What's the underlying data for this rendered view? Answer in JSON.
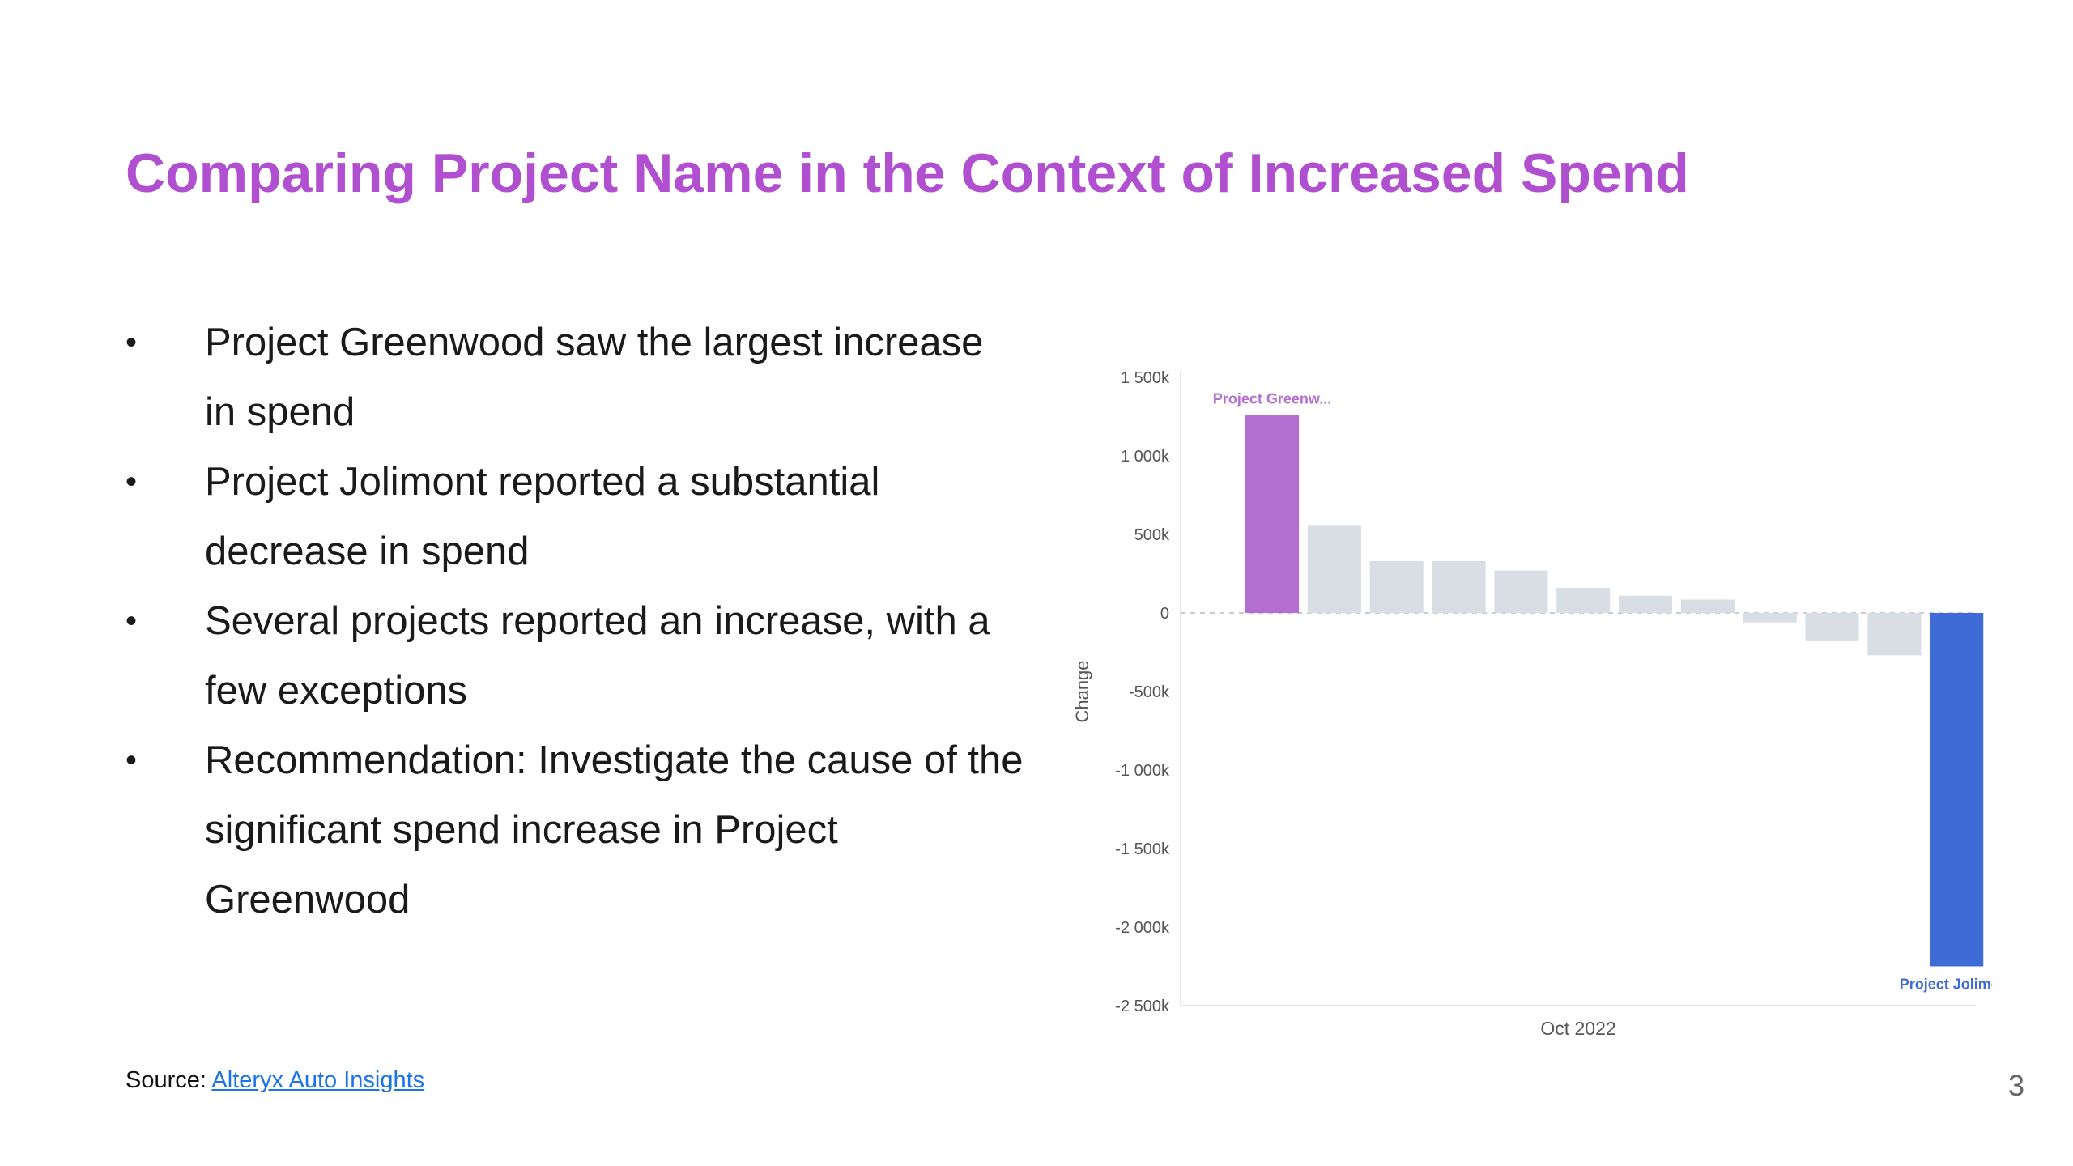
{
  "title": "Comparing Project Name in the Context of Increased Spend",
  "bullets": [
    "Project Greenwood saw the largest increase in spend",
    "Project Jolimont reported a substantial decrease in spend",
    "Several projects reported an increase, with a few exceptions",
    "Recommendation: Investigate the cause of the significant spend increase in Project Greenwood"
  ],
  "bullet_symbol": "•",
  "source": {
    "label": "Source: ",
    "link_text": "Alteryx Auto Insights"
  },
  "page_number": "3",
  "colors": {
    "title": "#B04FCF",
    "highlight_positive": "#B46ECF",
    "highlight_negative": "#3F6BD6",
    "neutral_bar": "#D9DEE4",
    "link": "#1a73e8"
  },
  "chart_data": {
    "type": "bar",
    "ylabel": "Change",
    "xlabel": "Oct 2022",
    "ylim": [
      -2500,
      1500
    ],
    "yticks": [
      1500,
      1000,
      500,
      0,
      -500,
      -1000,
      -1500,
      -2000,
      -2500
    ],
    "ytick_labels": [
      "1 500k",
      "1 000k",
      "500k",
      "0",
      "-500k",
      "-1 000k",
      "-1 500k",
      "-2 000k",
      "-2 500k"
    ],
    "values": [
      1260,
      560,
      330,
      330,
      270,
      160,
      110,
      85,
      -60,
      -180,
      -270,
      -2250
    ],
    "units": "k",
    "highlights": [
      {
        "index": 0,
        "label": "Project Greenw...",
        "color_key": "highlight_positive"
      },
      {
        "index": 11,
        "label": "Project Jolimont",
        "color_key": "highlight_negative"
      }
    ],
    "grid": false,
    "zero_line": "dashed"
  }
}
